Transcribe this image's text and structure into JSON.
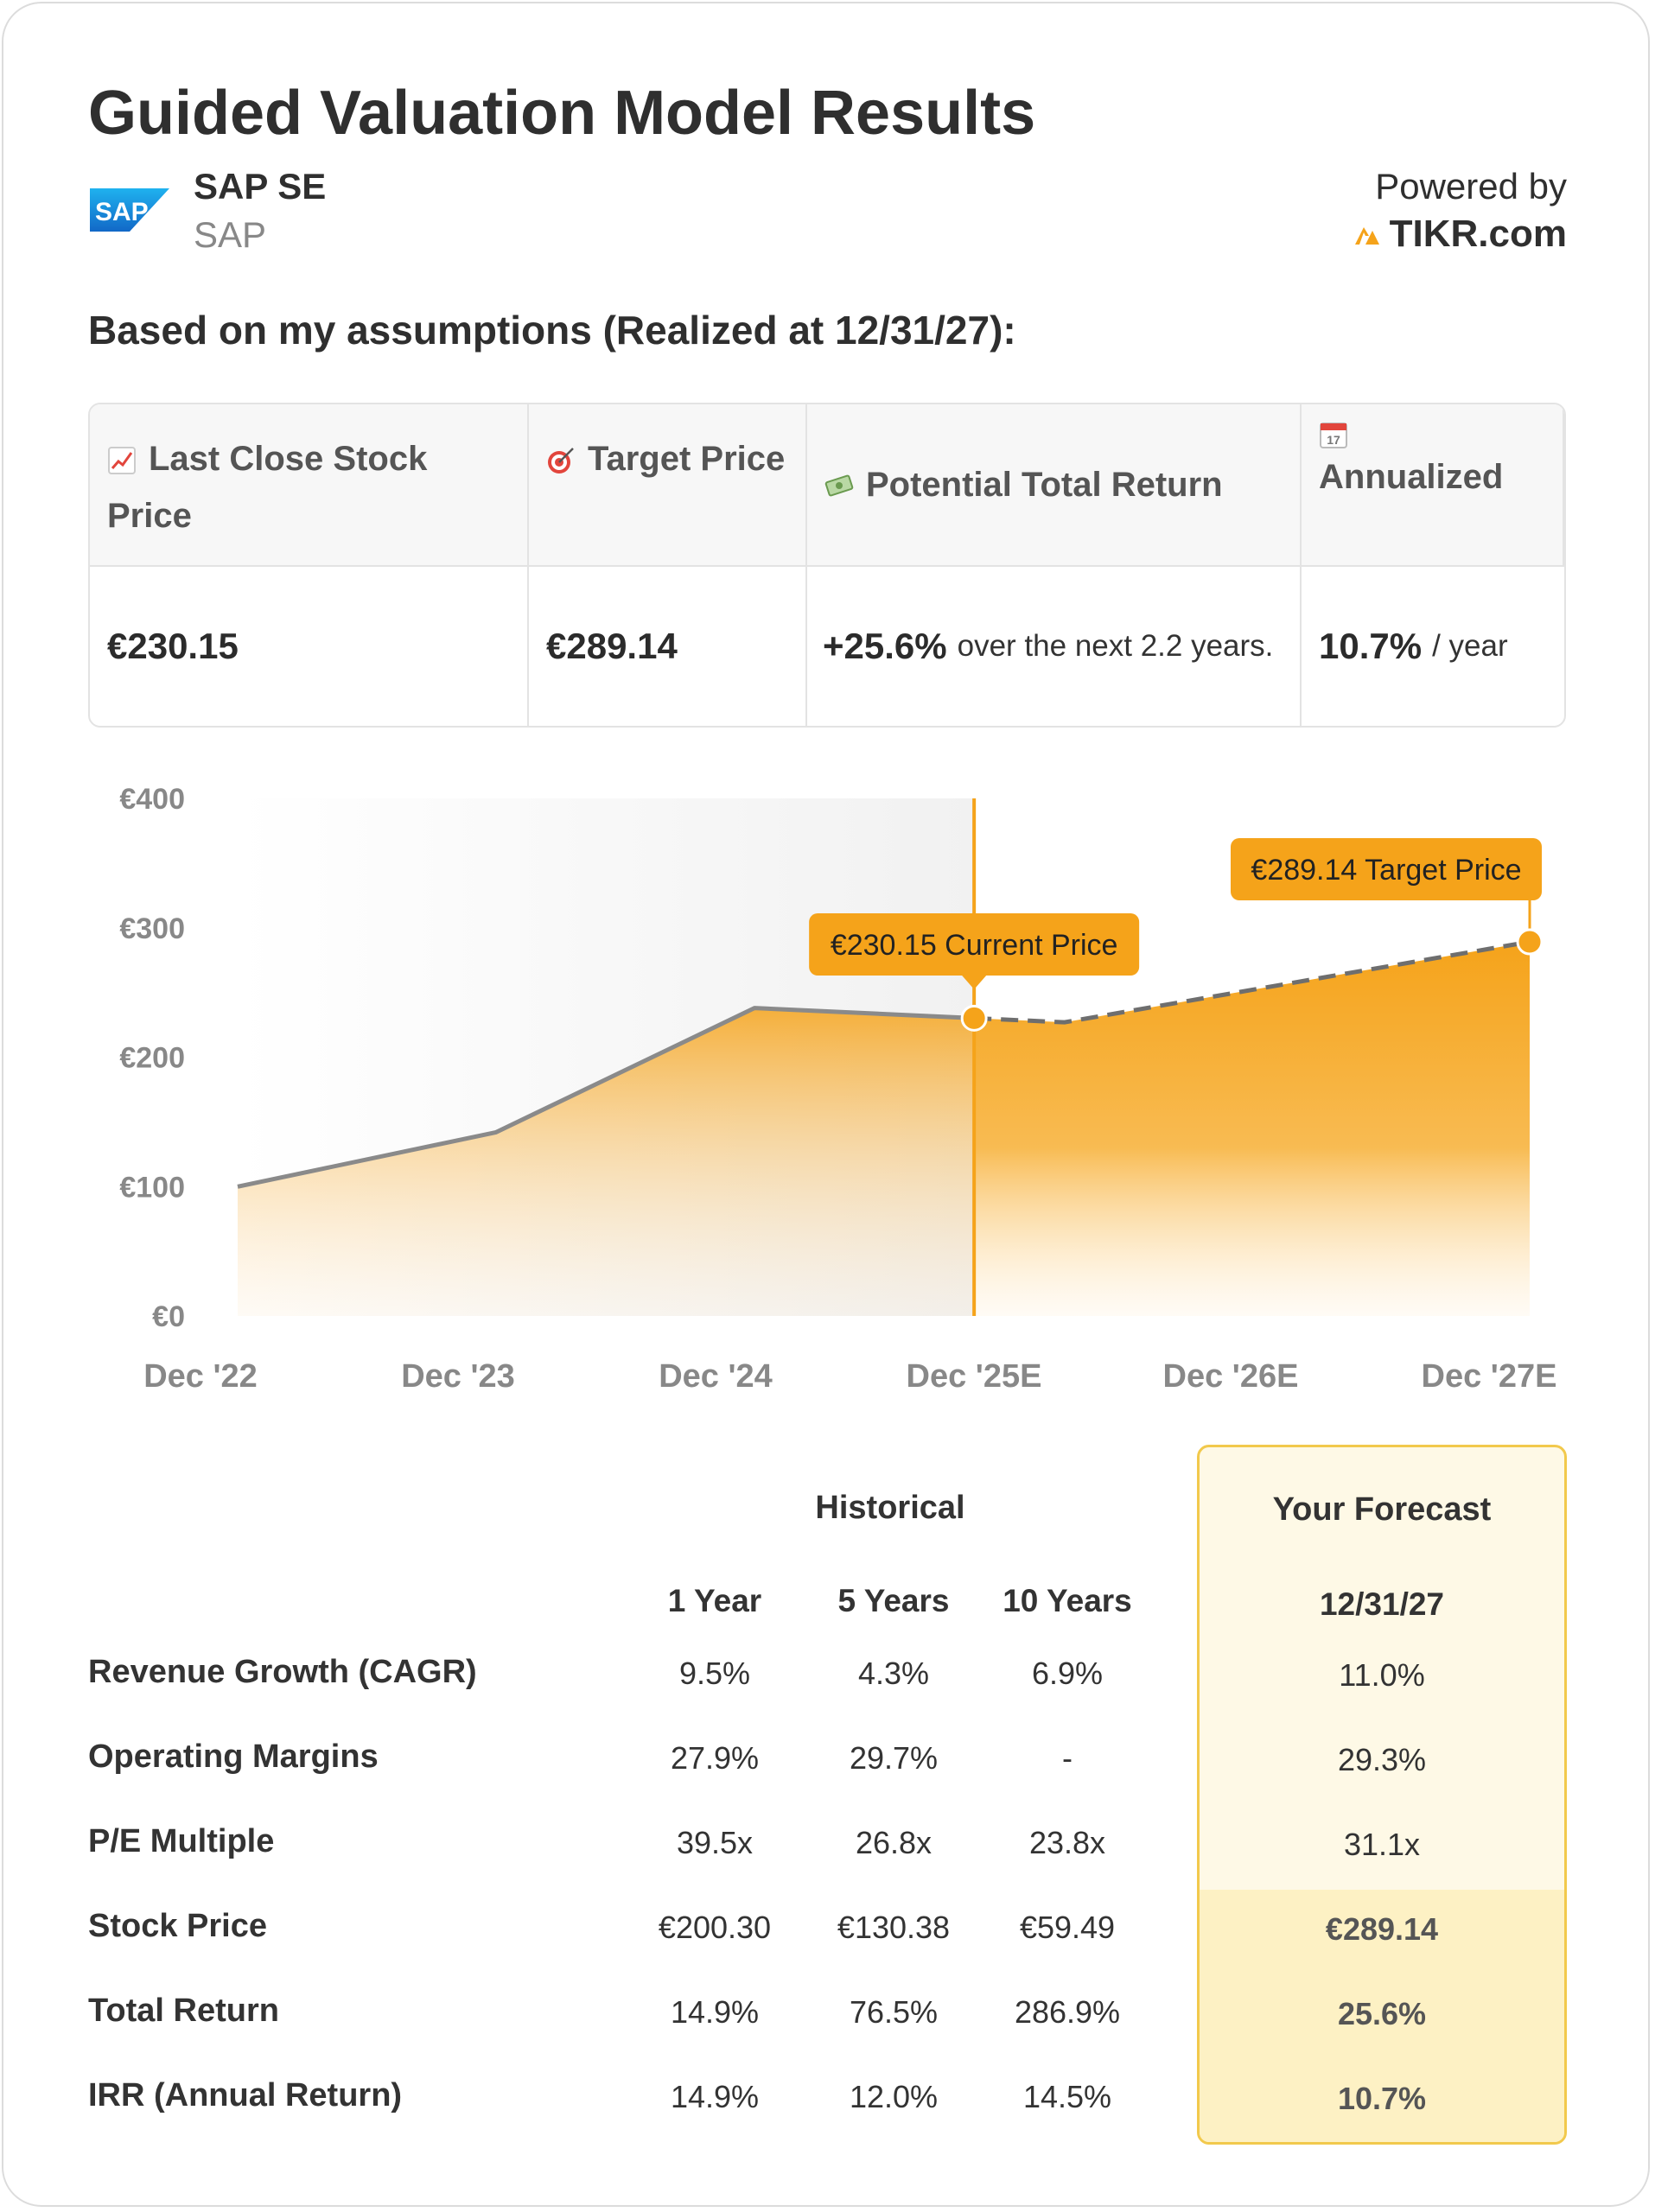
{
  "header": {
    "title": "Guided Valuation Model Results",
    "company_name": "SAP SE",
    "ticker": "SAP",
    "logo_text": "SAP",
    "powered_by": "Powered by",
    "brand": "TIKR.com"
  },
  "subtitle": "Based on my assumptions (Realized at 12/31/27):",
  "metrics": {
    "headers": [
      "Last Close Stock Price",
      "Target Price",
      "Potential Total Return",
      "Annualized"
    ],
    "icons": [
      "chart-up-icon",
      "target-icon",
      "money-icon",
      "calendar-icon"
    ],
    "calendar_day": "17",
    "last_close": "€230.15",
    "target": "€289.14",
    "return_value": "+25.6%",
    "return_note": "over the next 2.2 years.",
    "annualized_value": "10.7%",
    "annualized_unit": "/ year"
  },
  "chart_data": {
    "type": "area",
    "categories": [
      "Dec '22",
      "Dec '23",
      "Dec '24",
      "Dec '25E",
      "Dec '26E",
      "Dec '27E"
    ],
    "historical": [
      {
        "x": 0,
        "y": 100
      },
      {
        "x": 1,
        "y": 142
      },
      {
        "x": 2,
        "y": 238
      },
      {
        "x": 2.85,
        "y": 230.15
      }
    ],
    "forecast": [
      {
        "x": 2.85,
        "y": 230.15
      },
      {
        "x": 3.2,
        "y": 227
      },
      {
        "x": 5.0,
        "y": 289.14
      }
    ],
    "ylim": [
      0,
      400
    ],
    "yticks": [
      "€0",
      "€100",
      "€200",
      "€300",
      "€400"
    ],
    "ytick_values": [
      0,
      100,
      200,
      300,
      400
    ],
    "current_label": "€230.15 Current Price",
    "target_label": "€289.14 Target Price",
    "colors": {
      "accent": "#f5a31a",
      "line": "#8a8a8a"
    }
  },
  "table": {
    "historical_title": "Historical",
    "forecast_title": "Your Forecast",
    "columns": [
      "1 Year",
      "5 Years",
      "10 Years"
    ],
    "forecast_column": "12/31/27",
    "rows": [
      {
        "label": "Revenue Growth (CAGR)",
        "values": [
          "9.5%",
          "4.3%",
          "6.9%"
        ],
        "forecast": "11.0%"
      },
      {
        "label": "Operating Margins",
        "values": [
          "27.9%",
          "29.7%",
          "-"
        ],
        "forecast": "29.3%"
      },
      {
        "label": "P/E Multiple",
        "values": [
          "39.5x",
          "26.8x",
          "23.8x"
        ],
        "forecast": "31.1x"
      },
      {
        "label": "Stock Price",
        "values": [
          "€200.30",
          "€130.38",
          "€59.49"
        ],
        "forecast": "€289.14"
      },
      {
        "label": "Total Return",
        "values": [
          "14.9%",
          "76.5%",
          "286.9%"
        ],
        "forecast": "25.6%"
      },
      {
        "label": "IRR (Annual Return)",
        "values": [
          "14.9%",
          "12.0%",
          "14.5%"
        ],
        "forecast": "10.7%"
      }
    ]
  }
}
